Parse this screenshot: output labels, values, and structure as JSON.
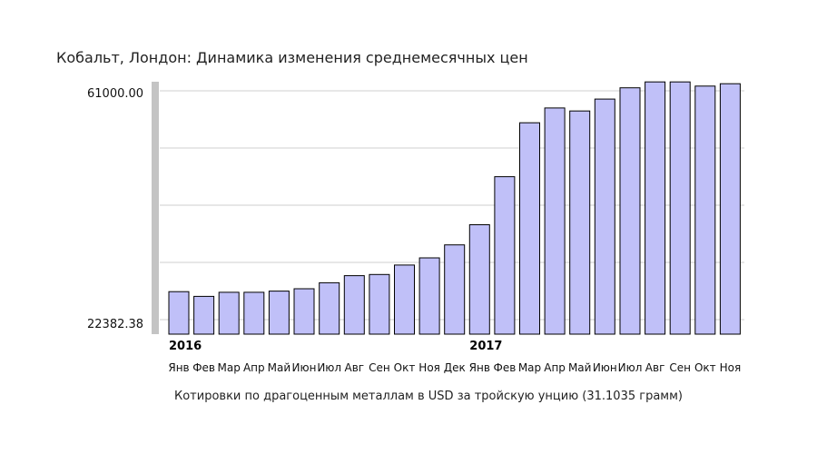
{
  "chart_data": {
    "type": "bar",
    "title": "Кобальт, Лондон: Динамика изменения среднемесячных цен",
    "y_tick_labels": [
      "61000.00",
      "22382.38"
    ],
    "ylim": [
      22382.38,
      61000.0
    ],
    "grid": true,
    "year_labels": [
      {
        "label": "2016",
        "index": 0
      },
      {
        "label": "2017",
        "index": 12
      }
    ],
    "categories": [
      "Янв",
      "Фев",
      "Мар",
      "Апр",
      "Май",
      "Июн",
      "Июл",
      "Авг",
      "Сен",
      "Окт",
      "Ноя",
      "Дек",
      "Янв",
      "Фев",
      "Мар",
      "Апр",
      "Май",
      "Июн",
      "Июл",
      "Авг",
      "Сен",
      "Окт",
      "Ноя"
    ],
    "values": [
      27100,
      26300,
      27000,
      27000,
      27200,
      27600,
      28600,
      29800,
      30000,
      31600,
      32800,
      35000,
      38400,
      46500,
      55600,
      58100,
      57600,
      59600,
      61500,
      62500,
      62500,
      61800,
      62200
    ],
    "bar_color": "#c0c0f8",
    "bar_stroke": "#000000"
  },
  "footnote": "Котировки по драгоценным металлам в USD за тройскую унцию (31.1035 грамм)"
}
